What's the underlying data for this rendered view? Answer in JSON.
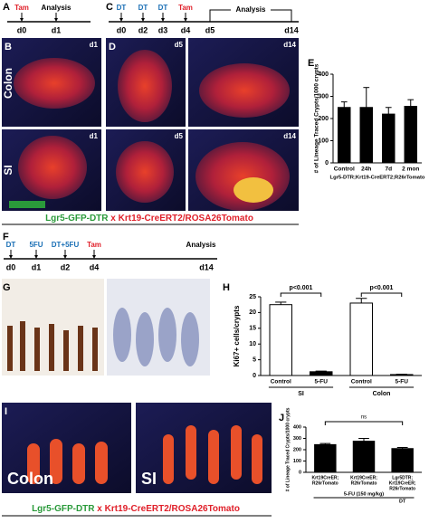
{
  "panel_a": {
    "label": "A",
    "steps": [
      {
        "label": "Tam",
        "day": "d0",
        "color": "#e0202a"
      },
      {
        "label": "Analysis",
        "day": "d1",
        "color": "#000000"
      }
    ]
  },
  "panel_c": {
    "label": "C",
    "steps": [
      {
        "label": "DT",
        "day": "d0",
        "color": "#1a6fb5"
      },
      {
        "label": "DT",
        "day": "d2",
        "color": "#1a6fb5"
      },
      {
        "label": "DT",
        "day": "d3",
        "color": "#1a6fb5"
      },
      {
        "label": "Tam",
        "day": "d4",
        "color": "#e0202a"
      }
    ],
    "bracket": {
      "label": "Analysis",
      "from": "d5",
      "to": "d14"
    }
  },
  "panel_b": {
    "label": "B",
    "rows": [
      "Colon",
      "SI"
    ],
    "tags": [
      "d1",
      "d1"
    ]
  },
  "panel_d": {
    "label": "D",
    "tags": [
      "d5",
      "d14",
      "d5",
      "d14"
    ]
  },
  "legend_1": {
    "left": "Lgr5-GFP-DTR",
    "mid": "x",
    "right": "Krt19-CreERT2/ROSA26Tomato"
  },
  "panel_f": {
    "label": "F",
    "steps": [
      {
        "label": "DT",
        "day": "d0",
        "color": "#1a6fb5"
      },
      {
        "label": "5FU",
        "day": "d1",
        "color": "#1a6fb5"
      },
      {
        "label": "DT+5FU",
        "day": "d2",
        "color": "#1a6fb5"
      },
      {
        "label": "Tam",
        "day": "d4",
        "color": "#e0202a"
      }
    ],
    "end": {
      "label": "Analysis",
      "day": "d14"
    }
  },
  "panel_g": {
    "label": "G"
  },
  "panel_i": {
    "label": "I",
    "tags": [
      "Colon",
      "SI"
    ]
  },
  "legend_2": {
    "left": "Lgr5-GFP-DTR",
    "mid": "x",
    "right": "Krt19-CreERT2/ROSA26Tomato"
  },
  "chart_data": [
    {
      "type": "bar",
      "panel": "E",
      "ylabel": "# of Lineage Traced Crypts/1000 crypts",
      "categories": [
        "Control",
        "24h",
        "7d",
        "2 mon"
      ],
      "values": [
        250,
        250,
        220,
        255
      ],
      "errors": [
        25,
        90,
        30,
        30
      ],
      "xlabel": "Lgr5-DTR;Krt19-CreERT2;R26rTomato",
      "color": "#000000",
      "ylim": [
        0,
        400
      ],
      "yticks": [
        0,
        100,
        200,
        300,
        400
      ]
    },
    {
      "type": "bar",
      "panel": "H",
      "ylabel": "Ki67+ cells/crypts",
      "categories": [
        "Control",
        "5-FU",
        "Control",
        "5-FU"
      ],
      "groups": [
        "SI",
        "Colon"
      ],
      "values": [
        22.5,
        1.2,
        23,
        0.3
      ],
      "errors": [
        0.8,
        0.2,
        1.5,
        0.1
      ],
      "colors": [
        "#ffffff",
        "#000000",
        "#ffffff",
        "#000000"
      ],
      "annotations": [
        "p<0.001",
        "p<0.001"
      ],
      "ylim": [
        0,
        25
      ],
      "yticks": [
        0,
        5,
        10,
        15,
        20,
        25
      ]
    },
    {
      "type": "bar",
      "panel": "J",
      "ylabel": "# of Lineage Traced Crypts/1000 crypts",
      "categories": [
        [
          "Krt19CreER;",
          "R26rTomato"
        ],
        [
          "Krt19CreER;",
          "R26rTomato"
        ],
        [
          "Lgr5DTR;",
          "Krt19CreER;",
          "R26rTomato"
        ]
      ],
      "values": [
        245,
        275,
        210
      ],
      "errors": [
        10,
        25,
        10
      ],
      "annotations": [
        "ns"
      ],
      "xlabel": "5-FU (150 mg/kg)",
      "sublabel": "DT",
      "color": "#000000",
      "ylim": [
        0,
        400
      ],
      "yticks": [
        0,
        100,
        200,
        300,
        400
      ]
    }
  ]
}
